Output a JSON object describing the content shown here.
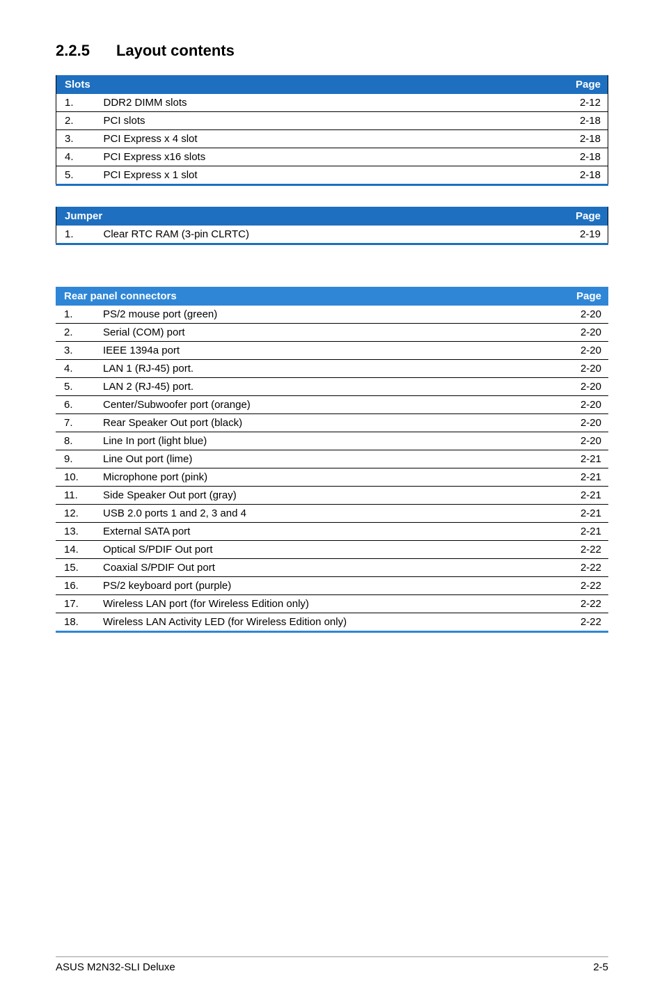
{
  "section": {
    "number": "2.2.5",
    "title": "Layout contents"
  },
  "colors": {
    "header_bg_bold": "#1e6fbf",
    "header_bg_light": "#2f86d6",
    "header_fg": "#ffffff",
    "bottom_border": "#2f86d6",
    "row_border": "#000000",
    "text": "#000000",
    "page_bg": "#ffffff"
  },
  "tables": {
    "slots": {
      "header_left": "Slots",
      "header_right": "Page",
      "rows": [
        {
          "n": "1.",
          "label": "DDR2 DIMM slots",
          "page": "2-12"
        },
        {
          "n": "2.",
          "label": "PCI slots",
          "page": "2-18"
        },
        {
          "n": "3.",
          "label": "PCI Express x 4 slot",
          "page": "2-18"
        },
        {
          "n": "4.",
          "label": "PCI Express x16 slots",
          "page": "2-18"
        },
        {
          "n": "5.",
          "label": "PCI Express x 1 slot",
          "page": "2-18"
        }
      ]
    },
    "jumper": {
      "header_left": "Jumper",
      "header_right": "Page",
      "rows": [
        {
          "n": "1.",
          "label": "Clear RTC RAM (3-pin CLRTC)",
          "page": "2-19"
        }
      ]
    },
    "rear": {
      "header_left": "Rear panel connectors",
      "header_right": "Page",
      "rows": [
        {
          "n": "1.",
          "label": "PS/2 mouse port (green)",
          "page": "2-20"
        },
        {
          "n": "2.",
          "label": "Serial (COM) port",
          "page": "2-20"
        },
        {
          "n": "3.",
          "label": "IEEE 1394a port",
          "page": "2-20"
        },
        {
          "n": "4.",
          "label": "LAN 1 (RJ-45) port.",
          "page": "2-20"
        },
        {
          "n": "5.",
          "label": "LAN 2 (RJ-45) port.",
          "page": "2-20"
        },
        {
          "n": "6.",
          "label": "Center/Subwoofer port (orange)",
          "page": "2-20"
        },
        {
          "n": "7.",
          "label": "Rear Speaker Out port (black)",
          "page": "2-20"
        },
        {
          "n": "8.",
          "label": "Line In port (light blue)",
          "page": "2-20"
        },
        {
          "n": "9.",
          "label": "Line Out port (lime)",
          "page": "2-21"
        },
        {
          "n": "10.",
          "label": "Microphone port (pink)",
          "page": "2-21"
        },
        {
          "n": "11.",
          "label": "Side Speaker Out port (gray)",
          "page": "2-21"
        },
        {
          "n": "12.",
          "label": "USB 2.0 ports 1 and 2, 3 and 4",
          "page": "2-21"
        },
        {
          "n": "13.",
          "label": "External SATA port",
          "page": "2-21"
        },
        {
          "n": "14.",
          "label": "Optical S/PDIF Out port",
          "page": "2-22"
        },
        {
          "n": "15.",
          "label": "Coaxial S/PDIF Out port",
          "page": "2-22"
        },
        {
          "n": "16.",
          "label": "PS/2 keyboard port (purple)",
          "page": "2-22"
        },
        {
          "n": "17.",
          "label": "Wireless LAN port (for Wireless Edition only)",
          "page": "2-22"
        },
        {
          "n": "18.",
          "label": "Wireless LAN Activity LED (for Wireless Edition only)",
          "page": "2-22"
        }
      ]
    }
  },
  "footer": {
    "left": "ASUS M2N32-SLI Deluxe",
    "right": "2-5"
  }
}
